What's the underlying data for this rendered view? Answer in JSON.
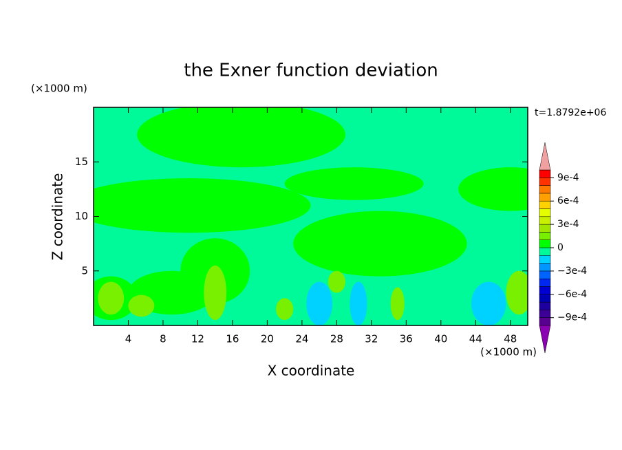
{
  "chart_data": {
    "type": "contour",
    "title": "the Exner function deviation",
    "xlabel": "X coordinate",
    "ylabel": "Z coordinate",
    "xunit": "(×1000 m)",
    "yunit": "(×1000 m)",
    "annotation": "t=1.8792e+06",
    "xlim": [
      0,
      50
    ],
    "ylim": [
      0,
      20
    ],
    "xticks": [
      4,
      8,
      12,
      16,
      20,
      24,
      28,
      32,
      36,
      40,
      44,
      48
    ],
    "yticks": [
      5,
      10,
      15
    ],
    "clim": [
      -0.001,
      0.001
    ],
    "colors": [
      "#5a0090",
      "#3c0096",
      "#1e00a0",
      "#0000b4",
      "#0000d2",
      "#0028f0",
      "#0064ff",
      "#0096ff",
      "#00d2ff",
      "#00fa9a",
      "#00ff00",
      "#78f000",
      "#a0e600",
      "#c8f000",
      "#e6ff00",
      "#ffd200",
      "#ffa000",
      "#ff7800",
      "#ff3200",
      "#ff0000"
    ],
    "extend_colors": [
      "#8c00b4",
      "#f0a0a0"
    ],
    "cticks": [
      {
        "value": 0.0009,
        "label": "9e-4"
      },
      {
        "value": 0.0006,
        "label": "6e-4"
      },
      {
        "value": 0.0003,
        "label": "3e-4"
      },
      0,
      {
        "value": -0.0003,
        "label": "−3e-4"
      },
      {
        "value": -0.0006,
        "label": "−6e-4"
      },
      {
        "value": -0.0009,
        "label": "−9e-4"
      }
    ],
    "background": -5e-05,
    "features": [
      {
        "x": 17,
        "z": 17.5,
        "rx": 12,
        "rz": 3,
        "value": 5e-05
      },
      {
        "x": 11,
        "z": 11,
        "rx": 14,
        "rz": 2.5,
        "value": 5e-05
      },
      {
        "x": 33,
        "z": 7.5,
        "rx": 10,
        "rz": 3,
        "value": 5e-05
      },
      {
        "x": 30,
        "z": 13,
        "rx": 8,
        "rz": 1.5,
        "value": 5e-05
      },
      {
        "x": 48,
        "z": 12.5,
        "rx": 6,
        "rz": 2,
        "value": 5e-05
      },
      {
        "x": 14,
        "z": 5,
        "rx": 4,
        "rz": 3,
        "value": 5e-05
      },
      {
        "x": 9,
        "z": 3,
        "rx": 5,
        "rz": 2,
        "value": 5e-05
      },
      {
        "x": 2,
        "z": 2.5,
        "rx": 3,
        "rz": 2,
        "value": 5e-05
      },
      {
        "x": 2,
        "z": 2.5,
        "rx": 1.5,
        "rz": 1.5,
        "value": 0.00015
      },
      {
        "x": 5.5,
        "z": 1.8,
        "rx": 1.5,
        "rz": 1,
        "value": 0.00015
      },
      {
        "x": 14,
        "z": 3,
        "rx": 1.3,
        "rz": 2.5,
        "value": 0.00015
      },
      {
        "x": 22,
        "z": 1.5,
        "rx": 1,
        "rz": 1,
        "value": 0.00015
      },
      {
        "x": 28,
        "z": 4,
        "rx": 1,
        "rz": 1,
        "value": 0.00015
      },
      {
        "x": 35,
        "z": 2,
        "rx": 0.8,
        "rz": 1.5,
        "value": 0.00015
      },
      {
        "x": 49,
        "z": 3,
        "rx": 1.5,
        "rz": 2,
        "value": 0.00015
      },
      {
        "x": 26,
        "z": 2,
        "rx": 1.5,
        "rz": 2,
        "value": -0.00015
      },
      {
        "x": 30.5,
        "z": 2,
        "rx": 1,
        "rz": 2,
        "value": -0.00015
      },
      {
        "x": 45.5,
        "z": 2,
        "rx": 2,
        "rz": 2,
        "value": -0.00015
      }
    ]
  }
}
